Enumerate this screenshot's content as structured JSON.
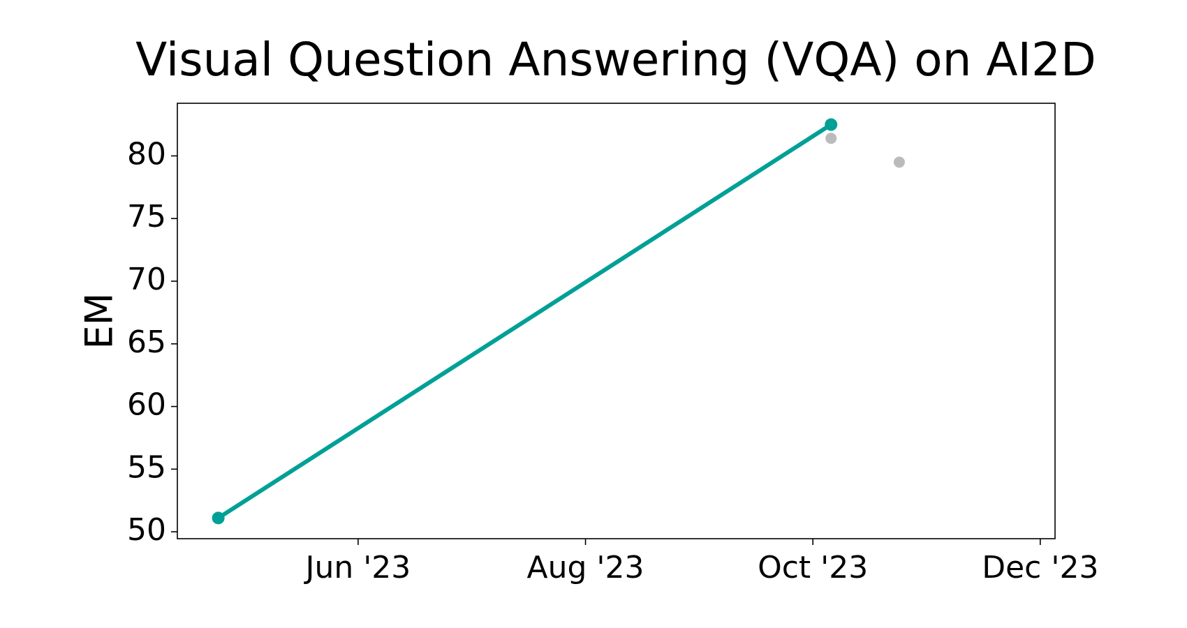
{
  "chart_data": {
    "type": "line",
    "title": "Visual Question Answering (VQA) on AI2D",
    "ylabel": "EM",
    "series": [
      {
        "type": "line",
        "color": "#00a096",
        "x": [
          4.77,
          10.16
        ],
        "values": [
          51.1,
          82.5
        ]
      },
      {
        "type": "scatter",
        "color": "#bbbbbb",
        "x": [
          10.16,
          10.76
        ],
        "values": [
          81.4,
          79.5
        ]
      }
    ],
    "xlim": [
      4.41,
      12.13
    ],
    "xticks": [
      {
        "value": 6,
        "label": "Jun '23"
      },
      {
        "value": 8,
        "label": "Aug '23"
      },
      {
        "value": 10,
        "label": "Oct '23"
      },
      {
        "value": 12,
        "label": "Dec '23"
      }
    ],
    "ylim": [
      49.45,
      84.2
    ],
    "yticks": [
      50,
      55,
      60,
      65,
      70,
      75,
      80
    ],
    "grid": false
  }
}
